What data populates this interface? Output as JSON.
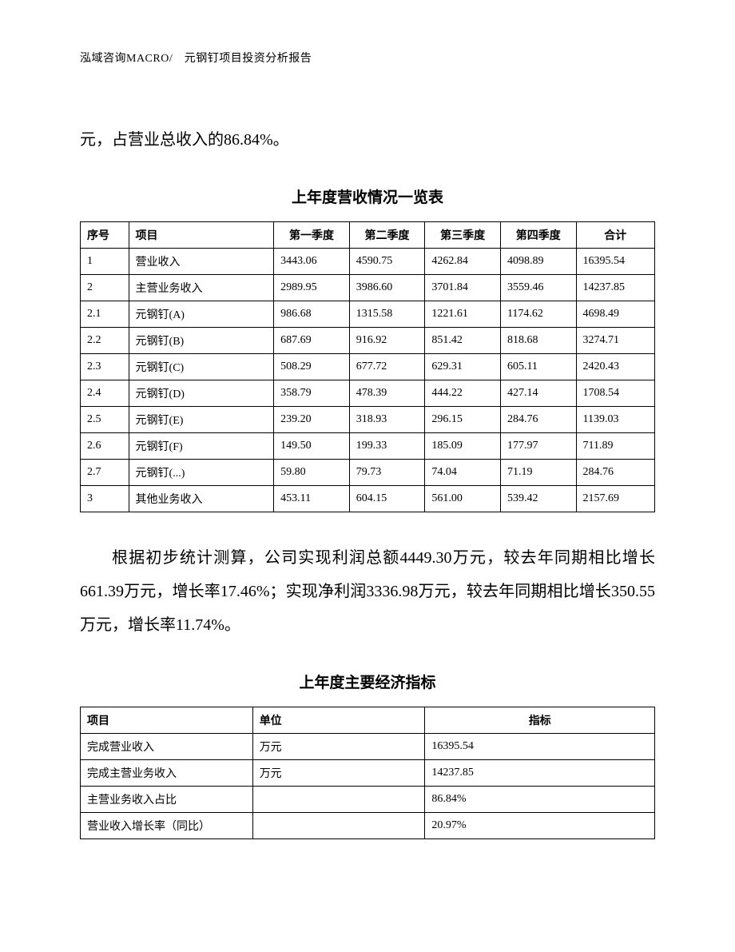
{
  "header": "泓域咨询MACRO/　元钢钉项目投资分析报告",
  "intro_paragraph": "元，占营业总收入的86.84%。",
  "table1": {
    "title": "上年度营收情况一览表",
    "columns": [
      "序号",
      "项目",
      "第一季度",
      "第二季度",
      "第三季度",
      "第四季度",
      "合计"
    ],
    "rows": [
      [
        "1",
        "营业收入",
        "3443.06",
        "4590.75",
        "4262.84",
        "4098.89",
        "16395.54"
      ],
      [
        "2",
        "主营业务收入",
        "2989.95",
        "3986.60",
        "3701.84",
        "3559.46",
        "14237.85"
      ],
      [
        "2.1",
        "元钢钉(A)",
        "986.68",
        "1315.58",
        "1221.61",
        "1174.62",
        "4698.49"
      ],
      [
        "2.2",
        "元钢钉(B)",
        "687.69",
        "916.92",
        "851.42",
        "818.68",
        "3274.71"
      ],
      [
        "2.3",
        "元钢钉(C)",
        "508.29",
        "677.72",
        "629.31",
        "605.11",
        "2420.43"
      ],
      [
        "2.4",
        "元钢钉(D)",
        "358.79",
        "478.39",
        "444.22",
        "427.14",
        "1708.54"
      ],
      [
        "2.5",
        "元钢钉(E)",
        "239.20",
        "318.93",
        "296.15",
        "284.76",
        "1139.03"
      ],
      [
        "2.6",
        "元钢钉(F)",
        "149.50",
        "199.33",
        "185.09",
        "177.97",
        "711.89"
      ],
      [
        "2.7",
        "元钢钉(...)",
        "59.80",
        "79.73",
        "74.04",
        "71.19",
        "284.76"
      ],
      [
        "3",
        "其他业务收入",
        "453.11",
        "604.15",
        "561.00",
        "539.42",
        "2157.69"
      ]
    ]
  },
  "middle_paragraph": "根据初步统计测算，公司实现利润总额4449.30万元，较去年同期相比增长661.39万元，增长率17.46%；实现净利润3336.98万元，较去年同期相比增长350.55万元，增长率11.74%。",
  "table2": {
    "title": "上年度主要经济指标",
    "columns": [
      "项目",
      "单位",
      "指标"
    ],
    "rows": [
      [
        "完成营业收入",
        "万元",
        "16395.54"
      ],
      [
        "完成主营业务收入",
        "万元",
        "14237.85"
      ],
      [
        "主营业务收入占比",
        "",
        "86.84%"
      ],
      [
        "营业收入增长率（同比）",
        "",
        "20.97%"
      ]
    ]
  }
}
